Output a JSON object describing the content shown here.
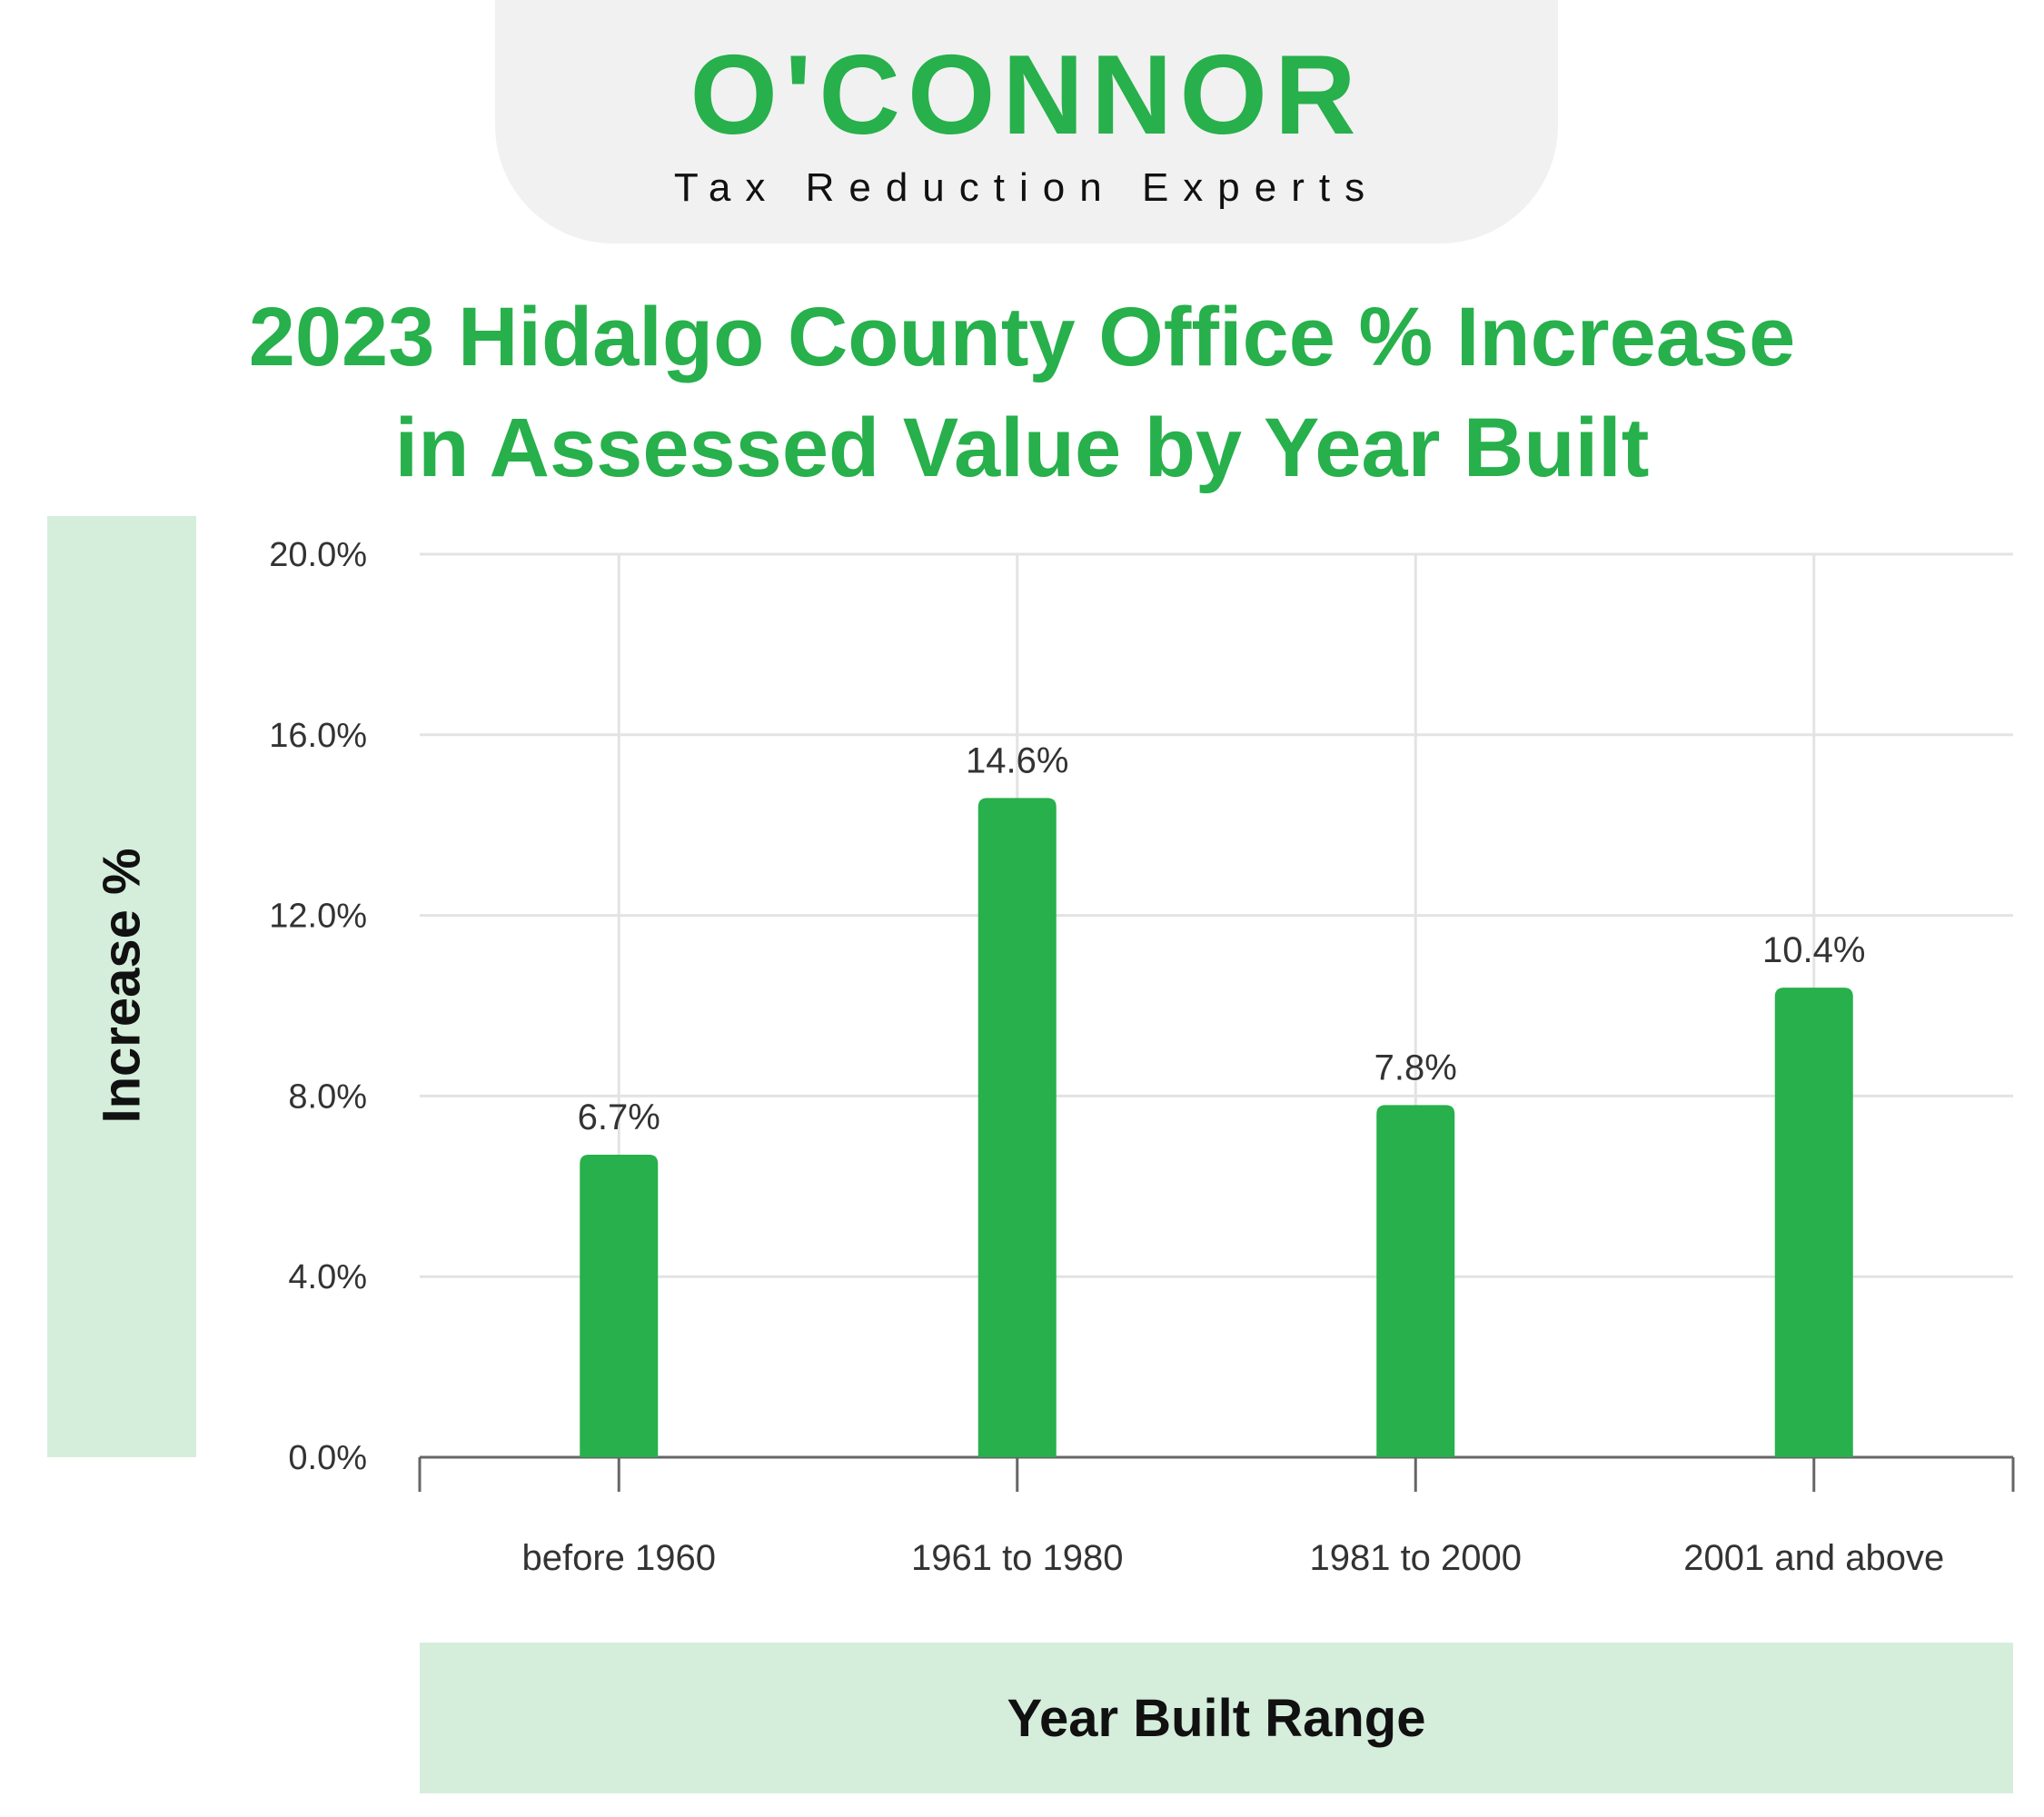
{
  "logo": {
    "name": "O'CONNOR",
    "tagline": "Tax Reduction Experts"
  },
  "colors": {
    "brand_green": "#27b04b",
    "panel_green": "#d5eedc",
    "grid": "#e3e3e3",
    "text": "#333333"
  },
  "chart_data": {
    "type": "bar",
    "title": "2023 Hidalgo County Office % Increase in Assessed Value by Year Built",
    "title_lines": [
      "2023 Hidalgo County Office % Increase",
      "in Assessed Value by Year Built"
    ],
    "xlabel": "Year Built Range",
    "ylabel": "Increase %",
    "categories": [
      "before 1960",
      "1961 to 1980",
      "1981 to 2000",
      "2001 and above"
    ],
    "values": [
      6.7,
      14.6,
      7.8,
      10.4
    ],
    "value_labels": [
      "6.7%",
      "14.6%",
      "7.8%",
      "10.4%"
    ],
    "ylim": [
      0,
      20
    ],
    "yticks": [
      0,
      4,
      8,
      12,
      16,
      20
    ],
    "ytick_labels": [
      "0.0%",
      "4.0%",
      "8.0%",
      "12.0%",
      "16.0%",
      "20.0%"
    ],
    "grid": true
  }
}
